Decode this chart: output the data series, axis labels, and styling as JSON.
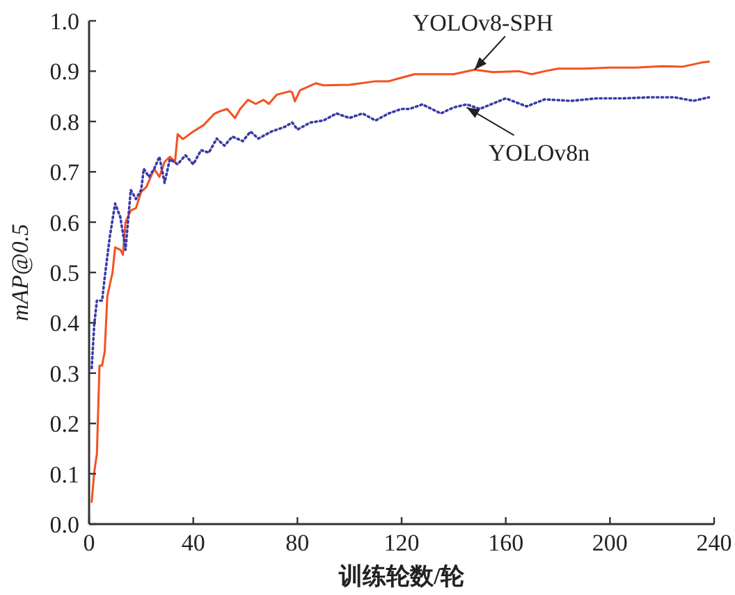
{
  "chart_data": {
    "type": "line",
    "xlabel": "训练轮数/轮",
    "ylabel": "mAP@0.5",
    "xlim": [
      0,
      240
    ],
    "ylim": [
      0,
      1
    ],
    "xticks": [
      0,
      40,
      80,
      120,
      160,
      200,
      240
    ],
    "yticks": [
      {
        "value": 0,
        "label": "0.0"
      },
      0.1,
      0.2,
      0.3,
      0.4,
      0.5,
      0.6,
      0.7,
      0.8,
      0.9,
      {
        "value": 1,
        "label": "1.0"
      }
    ],
    "series": [
      {
        "color": "#f4511e",
        "line_style": "solid",
        "x": [
          1,
          2,
          3,
          4,
          5,
          6,
          7,
          9,
          10,
          12,
          13,
          14,
          16,
          18,
          20,
          22,
          25,
          27,
          29,
          31,
          33,
          34,
          36,
          40,
          44,
          48,
          50,
          53,
          56,
          58,
          61,
          64,
          67,
          69,
          72,
          77,
          78,
          79,
          81,
          87,
          90,
          100,
          110,
          115,
          120,
          125,
          130,
          140,
          148,
          155,
          165,
          170,
          175,
          180,
          190,
          200,
          210,
          220,
          228,
          235,
          238
        ],
        "values": [
          0.044,
          0.104,
          0.14,
          0.315,
          0.315,
          0.343,
          0.453,
          0.5,
          0.55,
          0.545,
          0.535,
          0.6,
          0.623,
          0.628,
          0.66,
          0.67,
          0.706,
          0.69,
          0.72,
          0.73,
          0.72,
          0.775,
          0.765,
          0.78,
          0.793,
          0.815,
          0.82,
          0.825,
          0.807,
          0.825,
          0.843,
          0.835,
          0.843,
          0.835,
          0.853,
          0.86,
          0.858,
          0.84,
          0.862,
          0.876,
          0.872,
          0.873,
          0.88,
          0.88,
          0.887,
          0.894,
          0.894,
          0.894,
          0.903,
          0.898,
          0.9,
          0.894,
          0.9,
          0.905,
          0.905,
          0.907,
          0.907,
          0.91,
          0.909,
          0.917,
          0.919
        ]
      },
      {
        "color": "#3a3aa8",
        "line_style": "dotted",
        "x": [
          1,
          2,
          3,
          5,
          6,
          8,
          10,
          12,
          14,
          16,
          18,
          20,
          21,
          23,
          25,
          27,
          29,
          31,
          34,
          37,
          40,
          43,
          46,
          49,
          52,
          55,
          59,
          62,
          65,
          70,
          75,
          78,
          80,
          85,
          90,
          95,
          100,
          105,
          110,
          115,
          120,
          123,
          128,
          135,
          140,
          145,
          150,
          160,
          168,
          175,
          185,
          195,
          205,
          215,
          225,
          232,
          238
        ],
        "values": [
          0.31,
          0.398,
          0.444,
          0.444,
          0.49,
          0.573,
          0.637,
          0.61,
          0.545,
          0.664,
          0.646,
          0.664,
          0.706,
          0.69,
          0.706,
          0.73,
          0.678,
          0.725,
          0.715,
          0.733,
          0.715,
          0.743,
          0.738,
          0.766,
          0.752,
          0.77,
          0.761,
          0.78,
          0.766,
          0.78,
          0.789,
          0.798,
          0.784,
          0.798,
          0.802,
          0.816,
          0.807,
          0.816,
          0.802,
          0.816,
          0.825,
          0.825,
          0.834,
          0.816,
          0.828,
          0.834,
          0.825,
          0.846,
          0.83,
          0.844,
          0.841,
          0.846,
          0.846,
          0.848,
          0.848,
          0.841,
          0.848
        ]
      }
    ],
    "annotations": [
      {
        "text": "YOLOv8-SPH",
        "x": 148,
        "y": 0.903
      },
      {
        "text": "YOLOv8n",
        "x": 145,
        "y": 0.828
      }
    ]
  }
}
